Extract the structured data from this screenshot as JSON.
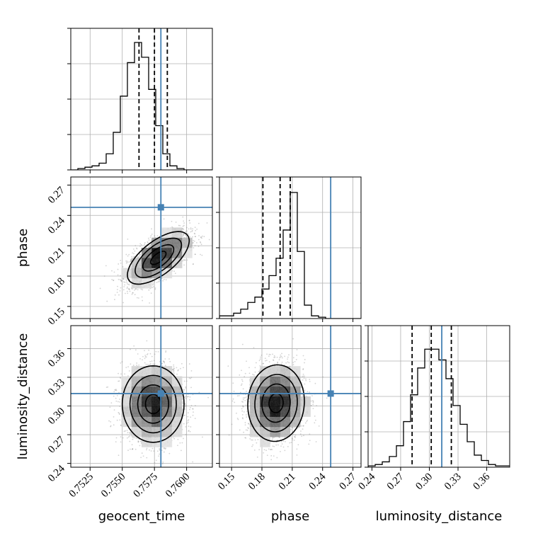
{
  "chart_data": {
    "type": "corner",
    "parameters": [
      "geocent_time",
      "phase",
      "luminosity_distance"
    ],
    "truths": {
      "geocent_time": 0.758,
      "phase": 0.248,
      "luminosity_distance": 0.313
    },
    "ranges": {
      "geocent_time": [
        0.751,
        0.762
      ],
      "phase": [
        0.138,
        0.278
      ],
      "luminosity_distance": [
        0.236,
        0.384
      ]
    },
    "ticks": {
      "geocent_time": [
        "0.7525",
        "0.7550",
        "0.7575",
        "0.7600"
      ],
      "phase": [
        "0.15",
        "0.18",
        "0.21",
        "0.24",
        "0.27"
      ],
      "luminosity_distance": [
        "0.24",
        "0.27",
        "0.30",
        "0.33",
        "0.36"
      ]
    },
    "quantiles": {
      "geocent_time": [
        0.7563,
        0.7575,
        0.7585
      ],
      "phase": [
        0.181,
        0.198,
        0.208
      ],
      "luminosity_distance": [
        0.282,
        0.302,
        0.323
      ]
    },
    "histograms": {
      "geocent_time": {
        "edges_range": [
          0.751,
          0.762
        ],
        "bins": 20,
        "counts": [
          0.0,
          0.01,
          0.02,
          0.03,
          0.05,
          0.12,
          0.28,
          0.55,
          0.8,
          0.95,
          0.84,
          0.6,
          0.33,
          0.12,
          0.03,
          0.01,
          0.0,
          0.0,
          0.0,
          0.0
        ]
      },
      "phase": {
        "edges_range": [
          0.138,
          0.278
        ],
        "bins": 20,
        "counts": [
          0.02,
          0.02,
          0.04,
          0.07,
          0.12,
          0.16,
          0.22,
          0.32,
          0.45,
          0.66,
          0.94,
          0.5,
          0.1,
          0.02,
          0.01,
          0.0,
          0.0,
          0.0,
          0.0,
          0.0
        ]
      },
      "luminosity_distance": {
        "edges_range": [
          0.236,
          0.384
        ],
        "bins": 20,
        "counts": [
          0.01,
          0.02,
          0.04,
          0.08,
          0.16,
          0.34,
          0.54,
          0.74,
          0.88,
          0.88,
          0.8,
          0.66,
          0.46,
          0.32,
          0.19,
          0.09,
          0.05,
          0.02,
          0.01,
          0.01
        ]
      }
    },
    "samples_2d": {
      "geocent_time-phase": {
        "mean": [
          0.7578,
          0.198
        ],
        "sd": [
          0.0012,
          0.013
        ],
        "rho": 0.65
      },
      "geocent_time-luminosity_distance": {
        "mean": [
          0.7574,
          0.302
        ],
        "sd": [
          0.0012,
          0.02
        ],
        "rho": 0.0
      },
      "phase-luminosity_distance": {
        "mean": [
          0.194,
          0.303
        ],
        "sd": [
          0.014,
          0.02
        ],
        "rho": 0.05
      }
    },
    "grid": true,
    "colors": {
      "truth": "#4682b4",
      "line": "#000000",
      "scatter": "#808080"
    }
  }
}
